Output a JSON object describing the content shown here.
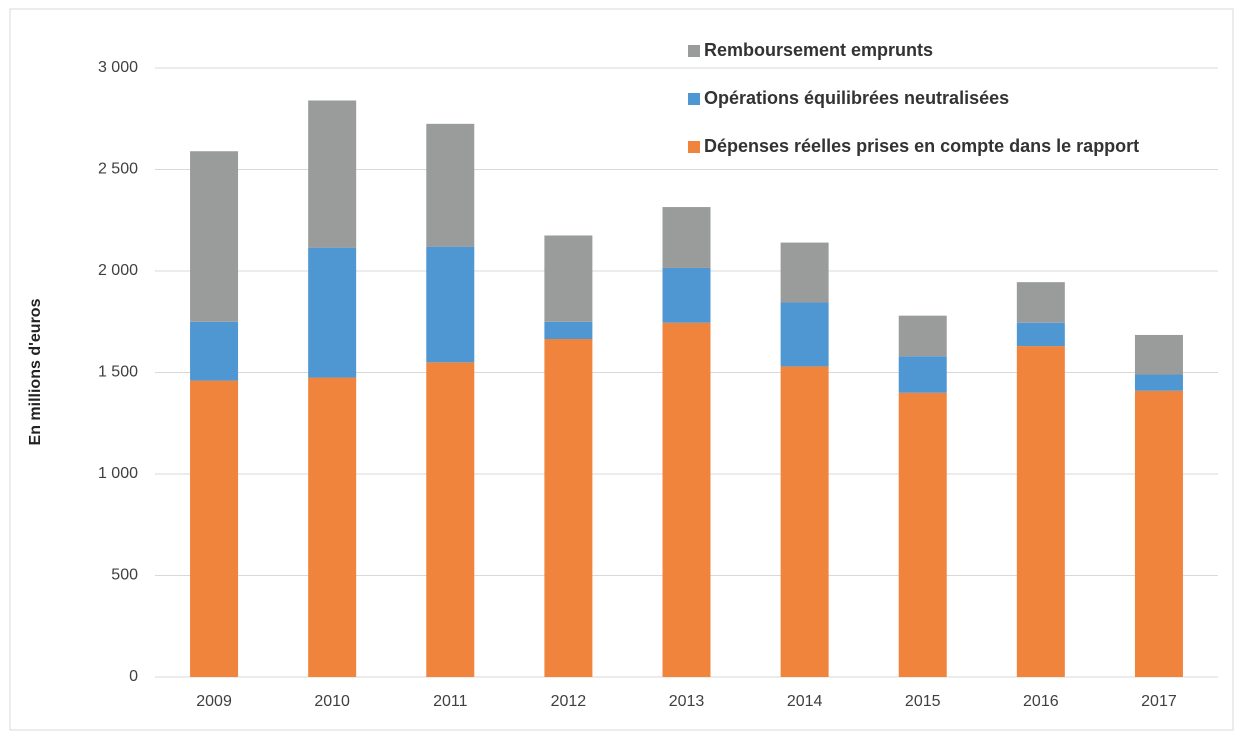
{
  "chart_data": {
    "type": "stacked-bar",
    "y_label": "En millions d'euros",
    "categories": [
      "2009",
      "2010",
      "2011",
      "2012",
      "2013",
      "2014",
      "2015",
      "2016",
      "2017"
    ],
    "series": [
      {
        "name": "Dépenses réelles prises en compte dans le rapport",
        "color": "#f0843c",
        "values": [
          1460,
          1475,
          1550,
          1665,
          1745,
          1530,
          1400,
          1630,
          1410
        ]
      },
      {
        "name": "Opérations équilibrées neutralisées",
        "color": "#4f97d3",
        "values": [
          290,
          640,
          570,
          85,
          270,
          315,
          180,
          115,
          80
        ]
      },
      {
        "name": "Remboursement emprunts",
        "color": "#9a9c9c",
        "values": [
          840,
          725,
          605,
          425,
          300,
          295,
          200,
          200,
          195
        ]
      }
    ],
    "ylim": [
      0,
      3000
    ],
    "yticks": [
      0,
      500,
      {
        "value": 1000,
        "label": "1 000"
      },
      {
        "value": 1500,
        "label": "1 500"
      },
      {
        "value": 2000,
        "label": "2 000"
      },
      {
        "value": 2500,
        "label": "2 500"
      },
      {
        "value": 3000,
        "label": "3 000"
      }
    ],
    "grid": true,
    "legend": "top-right"
  }
}
